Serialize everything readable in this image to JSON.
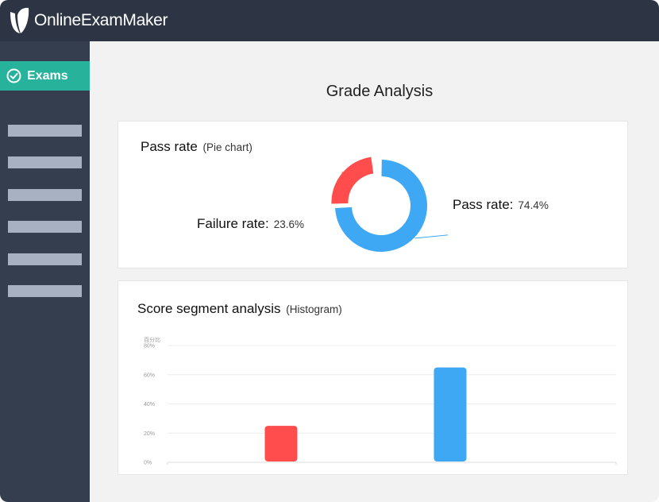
{
  "app": {
    "name": "OnlineExamMaker"
  },
  "sidebar": {
    "active_item": {
      "label": "Exams",
      "icon": "check-circle-icon"
    },
    "placeholder_items": 6
  },
  "page": {
    "title": "Grade Analysis"
  },
  "pass_card": {
    "title": "Pass rate",
    "subtitle": "(Pie chart)",
    "pass_label": "Pass rate:",
    "pass_value": "74.4%",
    "fail_label": "Failure rate:",
    "fail_value": "23.6%"
  },
  "score_card": {
    "title": "Score segment analysis",
    "subtitle": "(Histogram)"
  },
  "colors": {
    "pass": "#3ea8f5",
    "fail": "#ff4c4c",
    "accent": "#27b29c",
    "topbar": "#2d3545",
    "sidebar": "#343e4e"
  },
  "chart_data": [
    {
      "type": "pie",
      "labels": [
        "Pass rate",
        "Failure rate"
      ],
      "values": [
        74.4,
        23.6
      ],
      "colors": [
        "#3ea8f5",
        "#ff4c4c"
      ]
    },
    {
      "type": "bar",
      "ylabel": "百分比",
      "yticks": [
        "80%",
        "60%",
        "40%",
        "20%",
        "0%"
      ],
      "ylim": [
        0,
        80
      ],
      "values": [
        25,
        65
      ],
      "colors": [
        "#ff4c4c",
        "#3ea8f5"
      ],
      "grid": true
    }
  ]
}
